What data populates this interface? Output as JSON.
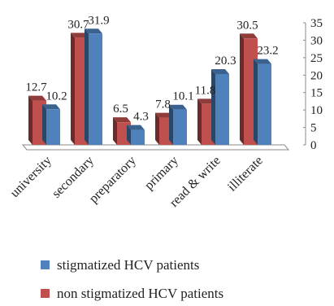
{
  "chart_data": {
    "type": "bar",
    "three_d": true,
    "categories": [
      "university",
      "secondary",
      "preparatory",
      "primary",
      "read & write",
      "illiterate"
    ],
    "series": [
      {
        "name": "non stigmatized HCV patients",
        "values": [
          12.7,
          30.7,
          6.5,
          7.8,
          11.8,
          30.5
        ],
        "color": "#c0504d"
      },
      {
        "name": "stigmatized HCV patients",
        "values": [
          10.2,
          31.9,
          4.3,
          10.1,
          20.3,
          23.2
        ],
        "color": "#4f81bd"
      }
    ],
    "value_labels": [
      [
        "12.7",
        "30.7",
        "6.5",
        "7.8",
        "11.8",
        "30.5"
      ],
      [
        "10.2",
        "31.9",
        "4.3",
        "10.1",
        "20.3",
        "23.2"
      ]
    ],
    "yticks": [
      "0",
      "5",
      "10",
      "15",
      "20",
      "25",
      "30",
      "35"
    ],
    "ylim": [
      0,
      35
    ],
    "yaxis_position": "right",
    "legend_position": "bottom",
    "title": "",
    "xlabel": "",
    "ylabel": ""
  },
  "legend": {
    "items": [
      {
        "label": "stigmatized HCV patients",
        "color": "#4f81bd"
      },
      {
        "label": "non stigmatized HCV patients",
        "color": "#c0504d"
      }
    ]
  }
}
